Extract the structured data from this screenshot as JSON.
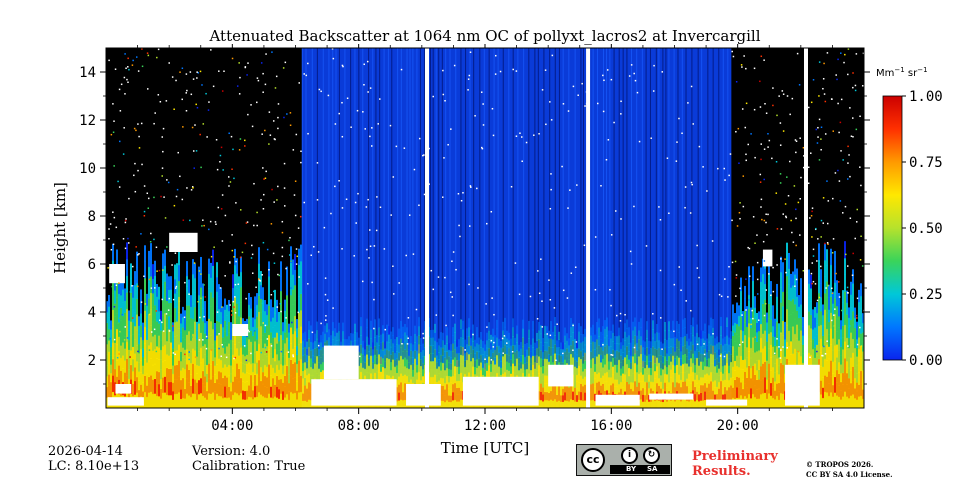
{
  "chart_data": {
    "type": "heatmap",
    "title": "Attenuated Backscatter at 1064 nm OC of pollyxt_lacros2 at Invercargill",
    "xlabel": "Time [UTC]",
    "ylabel": "Height [km]",
    "x_range_hours": [
      0,
      24
    ],
    "x_ticks": [
      "04:00",
      "08:00",
      "12:00",
      "16:00",
      "20:00"
    ],
    "x_tick_hours": [
      4,
      8,
      12,
      16,
      20
    ],
    "ylim": [
      0,
      15
    ],
    "y_ticks": [
      2,
      4,
      6,
      8,
      10,
      12,
      14
    ],
    "colorbar": {
      "unit_prefix": "Mm",
      "unit_exp1": "−1",
      "unit_mid": " sr",
      "unit_exp2": "−1",
      "min": 0.0,
      "max": 1.0,
      "ticks": [
        "0.00",
        "0.25",
        "0.50",
        "0.75",
        "1.00"
      ],
      "tick_values": [
        0,
        0.25,
        0.5,
        0.75,
        1.0
      ],
      "colors": [
        "#0a24ee",
        "#0077ff",
        "#00c8d8",
        "#3ad45a",
        "#b6e22c",
        "#ffe800",
        "#ff9a00",
        "#ff3000",
        "#cc0000"
      ]
    },
    "regions": [
      {
        "name": "night-left",
        "from_hour": 0,
        "to_hour": 6.2,
        "sky": "noisy-dark"
      },
      {
        "name": "day-blue",
        "from_hour": 6.2,
        "to_hour": 19.8,
        "sky": "low-backscatter"
      },
      {
        "name": "night-right",
        "from_hour": 19.8,
        "to_hour": 24,
        "sky": "noisy-dark"
      }
    ],
    "boundary_layer_top_km": 2.0,
    "data_gaps_hours": [
      10.1,
      15.2,
      22.1
    ]
  },
  "footer": {
    "date": "2026-04-14",
    "lc": "LC: 8.10e+13",
    "version": "Version: 4.0",
    "calibration": "Calibration: True",
    "preliminary": "Preliminary\nResults.",
    "copyright": "© TROPOS 2026.\nCC BY SA 4.0 License.",
    "license_badge": {
      "cc": "cc",
      "by": "BY",
      "sa": "SA"
    }
  },
  "colors": {
    "night_background": "#000000",
    "day_background": "#0a3bd8",
    "cloud": "#ffffff",
    "gap": "#ffffff"
  }
}
